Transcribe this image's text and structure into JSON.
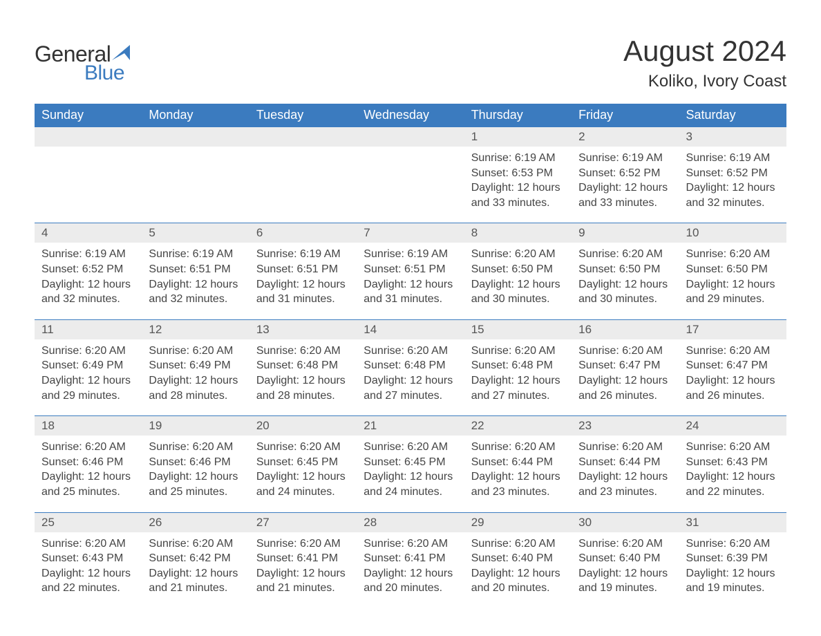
{
  "brand": {
    "word1": "General",
    "word2": "Blue",
    "accent_color": "#3b7bbf",
    "text_color": "#333333"
  },
  "title": "August 2024",
  "location": "Koliko, Ivory Coast",
  "colors": {
    "header_bg": "#3b7bbf",
    "header_text": "#ffffff",
    "daynum_bg": "#ececec",
    "row_divider": "#3b7bbf",
    "body_text": "#444444",
    "page_bg": "#ffffff"
  },
  "day_headers": [
    "Sunday",
    "Monday",
    "Tuesday",
    "Wednesday",
    "Thursday",
    "Friday",
    "Saturday"
  ],
  "weeks": [
    {
      "days": [
        {
          "empty": true
        },
        {
          "empty": true
        },
        {
          "empty": true
        },
        {
          "empty": true
        },
        {
          "num": "1",
          "sunrise": "Sunrise: 6:19 AM",
          "sunset": "Sunset: 6:53 PM",
          "daylight": "Daylight: 12 hours and 33 minutes."
        },
        {
          "num": "2",
          "sunrise": "Sunrise: 6:19 AM",
          "sunset": "Sunset: 6:52 PM",
          "daylight": "Daylight: 12 hours and 33 minutes."
        },
        {
          "num": "3",
          "sunrise": "Sunrise: 6:19 AM",
          "sunset": "Sunset: 6:52 PM",
          "daylight": "Daylight: 12 hours and 32 minutes."
        }
      ]
    },
    {
      "days": [
        {
          "num": "4",
          "sunrise": "Sunrise: 6:19 AM",
          "sunset": "Sunset: 6:52 PM",
          "daylight": "Daylight: 12 hours and 32 minutes."
        },
        {
          "num": "5",
          "sunrise": "Sunrise: 6:19 AM",
          "sunset": "Sunset: 6:51 PM",
          "daylight": "Daylight: 12 hours and 32 minutes."
        },
        {
          "num": "6",
          "sunrise": "Sunrise: 6:19 AM",
          "sunset": "Sunset: 6:51 PM",
          "daylight": "Daylight: 12 hours and 31 minutes."
        },
        {
          "num": "7",
          "sunrise": "Sunrise: 6:19 AM",
          "sunset": "Sunset: 6:51 PM",
          "daylight": "Daylight: 12 hours and 31 minutes."
        },
        {
          "num": "8",
          "sunrise": "Sunrise: 6:20 AM",
          "sunset": "Sunset: 6:50 PM",
          "daylight": "Daylight: 12 hours and 30 minutes."
        },
        {
          "num": "9",
          "sunrise": "Sunrise: 6:20 AM",
          "sunset": "Sunset: 6:50 PM",
          "daylight": "Daylight: 12 hours and 30 minutes."
        },
        {
          "num": "10",
          "sunrise": "Sunrise: 6:20 AM",
          "sunset": "Sunset: 6:50 PM",
          "daylight": "Daylight: 12 hours and 29 minutes."
        }
      ]
    },
    {
      "days": [
        {
          "num": "11",
          "sunrise": "Sunrise: 6:20 AM",
          "sunset": "Sunset: 6:49 PM",
          "daylight": "Daylight: 12 hours and 29 minutes."
        },
        {
          "num": "12",
          "sunrise": "Sunrise: 6:20 AM",
          "sunset": "Sunset: 6:49 PM",
          "daylight": "Daylight: 12 hours and 28 minutes."
        },
        {
          "num": "13",
          "sunrise": "Sunrise: 6:20 AM",
          "sunset": "Sunset: 6:48 PM",
          "daylight": "Daylight: 12 hours and 28 minutes."
        },
        {
          "num": "14",
          "sunrise": "Sunrise: 6:20 AM",
          "sunset": "Sunset: 6:48 PM",
          "daylight": "Daylight: 12 hours and 27 minutes."
        },
        {
          "num": "15",
          "sunrise": "Sunrise: 6:20 AM",
          "sunset": "Sunset: 6:48 PM",
          "daylight": "Daylight: 12 hours and 27 minutes."
        },
        {
          "num": "16",
          "sunrise": "Sunrise: 6:20 AM",
          "sunset": "Sunset: 6:47 PM",
          "daylight": "Daylight: 12 hours and 26 minutes."
        },
        {
          "num": "17",
          "sunrise": "Sunrise: 6:20 AM",
          "sunset": "Sunset: 6:47 PM",
          "daylight": "Daylight: 12 hours and 26 minutes."
        }
      ]
    },
    {
      "days": [
        {
          "num": "18",
          "sunrise": "Sunrise: 6:20 AM",
          "sunset": "Sunset: 6:46 PM",
          "daylight": "Daylight: 12 hours and 25 minutes."
        },
        {
          "num": "19",
          "sunrise": "Sunrise: 6:20 AM",
          "sunset": "Sunset: 6:46 PM",
          "daylight": "Daylight: 12 hours and 25 minutes."
        },
        {
          "num": "20",
          "sunrise": "Sunrise: 6:20 AM",
          "sunset": "Sunset: 6:45 PM",
          "daylight": "Daylight: 12 hours and 24 minutes."
        },
        {
          "num": "21",
          "sunrise": "Sunrise: 6:20 AM",
          "sunset": "Sunset: 6:45 PM",
          "daylight": "Daylight: 12 hours and 24 minutes."
        },
        {
          "num": "22",
          "sunrise": "Sunrise: 6:20 AM",
          "sunset": "Sunset: 6:44 PM",
          "daylight": "Daylight: 12 hours and 23 minutes."
        },
        {
          "num": "23",
          "sunrise": "Sunrise: 6:20 AM",
          "sunset": "Sunset: 6:44 PM",
          "daylight": "Daylight: 12 hours and 23 minutes."
        },
        {
          "num": "24",
          "sunrise": "Sunrise: 6:20 AM",
          "sunset": "Sunset: 6:43 PM",
          "daylight": "Daylight: 12 hours and 22 minutes."
        }
      ]
    },
    {
      "days": [
        {
          "num": "25",
          "sunrise": "Sunrise: 6:20 AM",
          "sunset": "Sunset: 6:43 PM",
          "daylight": "Daylight: 12 hours and 22 minutes."
        },
        {
          "num": "26",
          "sunrise": "Sunrise: 6:20 AM",
          "sunset": "Sunset: 6:42 PM",
          "daylight": "Daylight: 12 hours and 21 minutes."
        },
        {
          "num": "27",
          "sunrise": "Sunrise: 6:20 AM",
          "sunset": "Sunset: 6:41 PM",
          "daylight": "Daylight: 12 hours and 21 minutes."
        },
        {
          "num": "28",
          "sunrise": "Sunrise: 6:20 AM",
          "sunset": "Sunset: 6:41 PM",
          "daylight": "Daylight: 12 hours and 20 minutes."
        },
        {
          "num": "29",
          "sunrise": "Sunrise: 6:20 AM",
          "sunset": "Sunset: 6:40 PM",
          "daylight": "Daylight: 12 hours and 20 minutes."
        },
        {
          "num": "30",
          "sunrise": "Sunrise: 6:20 AM",
          "sunset": "Sunset: 6:40 PM",
          "daylight": "Daylight: 12 hours and 19 minutes."
        },
        {
          "num": "31",
          "sunrise": "Sunrise: 6:20 AM",
          "sunset": "Sunset: 6:39 PM",
          "daylight": "Daylight: 12 hours and 19 minutes."
        }
      ]
    }
  ]
}
